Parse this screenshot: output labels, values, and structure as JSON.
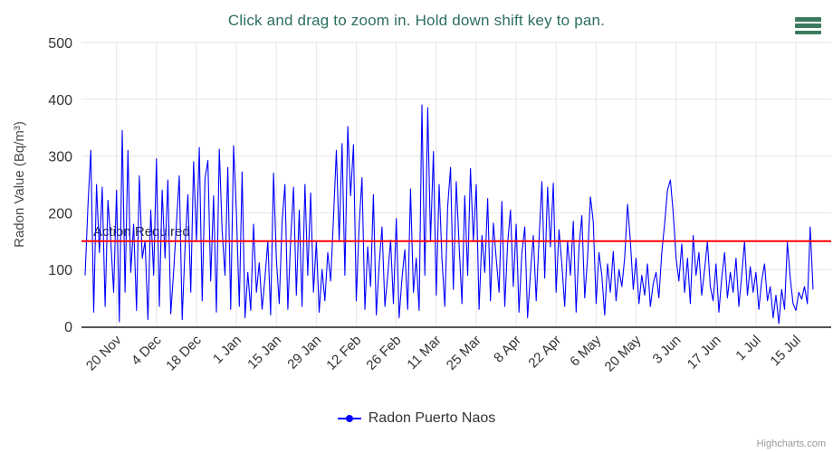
{
  "chart_data": {
    "type": "line",
    "title": "Click and drag to zoom in. Hold down shift key to pan.",
    "title_color": "#2c6e60",
    "ylabel": "Radon Value (Bq/m³)",
    "ylim": [
      0,
      500
    ],
    "yticks": [
      0,
      100,
      200,
      300,
      400,
      500
    ],
    "xticklabels": [
      "20 Nov",
      "4 Dec",
      "18 Dec",
      "1 Jan",
      "15 Jan",
      "29 Jan",
      "12 Feb",
      "26 Feb",
      "11 Mar",
      "25 Mar",
      "8 Apr",
      "22 Apr",
      "6 May",
      "20 May",
      "3 Jun",
      "17 Jun",
      "1 Jul",
      "15 Jul"
    ],
    "tick_indices": [
      11,
      25,
      39,
      53,
      67,
      81,
      95,
      109,
      123,
      137,
      151,
      165,
      179,
      193,
      207,
      221,
      235,
      249
    ],
    "grid": true,
    "legend_position": "bottom",
    "plot_line": {
      "value": 150,
      "label": "Action Required",
      "color": "#ff0000",
      "label_color": "#333333"
    },
    "series": [
      {
        "name": "Radon Puerto Naos",
        "color": "#0000ff",
        "values": [
          90,
          215,
          310,
          25,
          250,
          130,
          245,
          35,
          222,
          150,
          60,
          240,
          8,
          345,
          60,
          310,
          95,
          180,
          28,
          265,
          120,
          150,
          12,
          205,
          90,
          295,
          35,
          240,
          120,
          258,
          22,
          95,
          182,
          265,
          12,
          140,
          232,
          60,
          290,
          150,
          315,
          45,
          260,
          292,
          80,
          230,
          25,
          312,
          170,
          90,
          280,
          30,
          318,
          200,
          35,
          272,
          15,
          95,
          28,
          180,
          60,
          112,
          30,
          85,
          150,
          20,
          270,
          120,
          40,
          185,
          250,
          30,
          152,
          245,
          55,
          205,
          35,
          250,
          90,
          235,
          60,
          150,
          25,
          100,
          45,
          130,
          80,
          190,
          310,
          150,
          322,
          90,
          352,
          230,
          320,
          45,
          180,
          262,
          30,
          140,
          70,
          232,
          20,
          110,
          175,
          35,
          90,
          152,
          40,
          190,
          15,
          85,
          135,
          30,
          242,
          60,
          120,
          28,
          390,
          90,
          385,
          150,
          308,
          55,
          250,
          120,
          35,
          210,
          280,
          65,
          255,
          145,
          40,
          230,
          90,
          278,
          150,
          250,
          30,
          160,
          95,
          225,
          45,
          182,
          120,
          60,
          220,
          35,
          145,
          205,
          70,
          180,
          25,
          130,
          175,
          15,
          95,
          160,
          45,
          152,
          255,
          85,
          245,
          140,
          252,
          60,
          170,
          110,
          35,
          150,
          90,
          185,
          25,
          140,
          195,
          50,
          120,
          228,
          185,
          40,
          130,
          90,
          20,
          110,
          60,
          132,
          45,
          100,
          70,
          120,
          215,
          150,
          65,
          120,
          40,
          90,
          55,
          110,
          35,
          75,
          95,
          50,
          130,
          180,
          240,
          258,
          200,
          120,
          80,
          145,
          60,
          120,
          40,
          160,
          90,
          130,
          55,
          100,
          150,
          70,
          45,
          110,
          25,
          85,
          130,
          50,
          95,
          60,
          120,
          35,
          90,
          150,
          55,
          105,
          60,
          95,
          30,
          80,
          110,
          45,
          70,
          15,
          55,
          5,
          65,
          30,
          148,
          85,
          40,
          28,
          60,
          48,
          70,
          40,
          175,
          65
        ]
      }
    ],
    "axis_text_color": "#333333",
    "grid_color": "#e6e6e6",
    "axis_line_color": "#565656"
  },
  "menu": {
    "icon": "hamburger-menu-icon",
    "color": "#3c7a5e"
  },
  "credits": {
    "label": "Highcharts.com"
  }
}
